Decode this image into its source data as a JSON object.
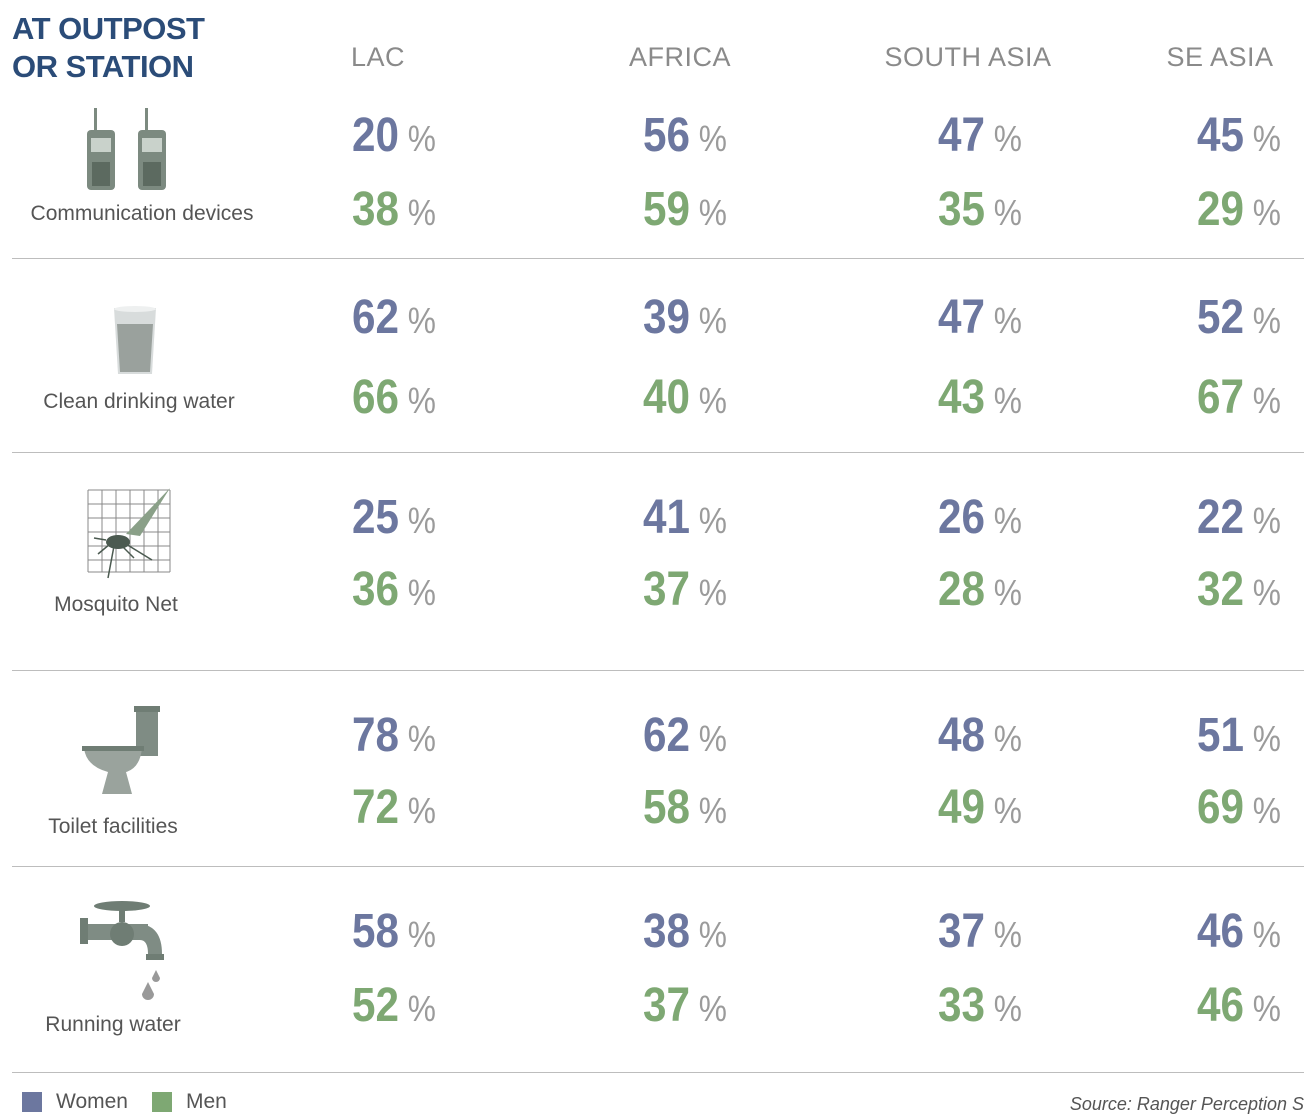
{
  "title": [
    "AT OUTPOST",
    "OR STATION"
  ],
  "columns": [
    "LAC",
    "AFRICA",
    "SOUTH ASIA",
    "SE ASIA"
  ],
  "unit": "%",
  "rows": [
    {
      "label": "Communication devices",
      "women": [
        20,
        56,
        47,
        45
      ],
      "men": [
        38,
        59,
        35,
        29
      ]
    },
    {
      "label": "Clean drinking water",
      "women": [
        62,
        39,
        47,
        52
      ],
      "men": [
        66,
        40,
        43,
        67
      ]
    },
    {
      "label": "Mosquito Net",
      "women": [
        25,
        41,
        26,
        22
      ],
      "men": [
        36,
        37,
        28,
        32
      ]
    },
    {
      "label": "Toilet facilities",
      "women": [
        78,
        62,
        48,
        51
      ],
      "men": [
        72,
        58,
        49,
        69
      ]
    },
    {
      "label": "Running water",
      "women": [
        58,
        38,
        37,
        46
      ],
      "men": [
        52,
        37,
        33,
        46
      ]
    }
  ],
  "legend": [
    {
      "name": "Women",
      "color": "#6c779f"
    },
    {
      "name": "Men",
      "color": "#7ea873"
    }
  ],
  "source": "Source: Ranger Perception S"
}
